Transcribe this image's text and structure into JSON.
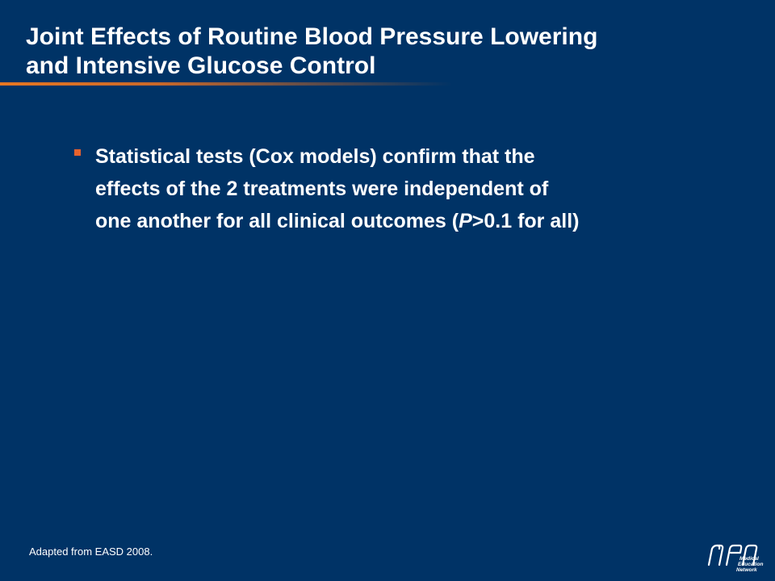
{
  "slide": {
    "title_lines": [
      "Joint Effects of Routine Blood Pressure Lowering",
      "and Intensive Glucose Control"
    ],
    "bullets": [
      {
        "line1": "Statistical tests (Cox models) confirm that the",
        "line2": "effects of the 2 treatments were independent of",
        "line3_prefix": "one another for all clinical outcomes (",
        "line3_italic": "P",
        "line3_suffix": ">0.1 for all)"
      }
    ],
    "footnote": "Adapted from EASD 2008.",
    "logo": {
      "mark": "mem-logo-icon",
      "words": [
        "Medical",
        "Education",
        "Network"
      ]
    }
  },
  "colors": {
    "background": "#003366",
    "accent": "#e87722",
    "bullet": "#e8632c",
    "text": "#ffffff"
  }
}
